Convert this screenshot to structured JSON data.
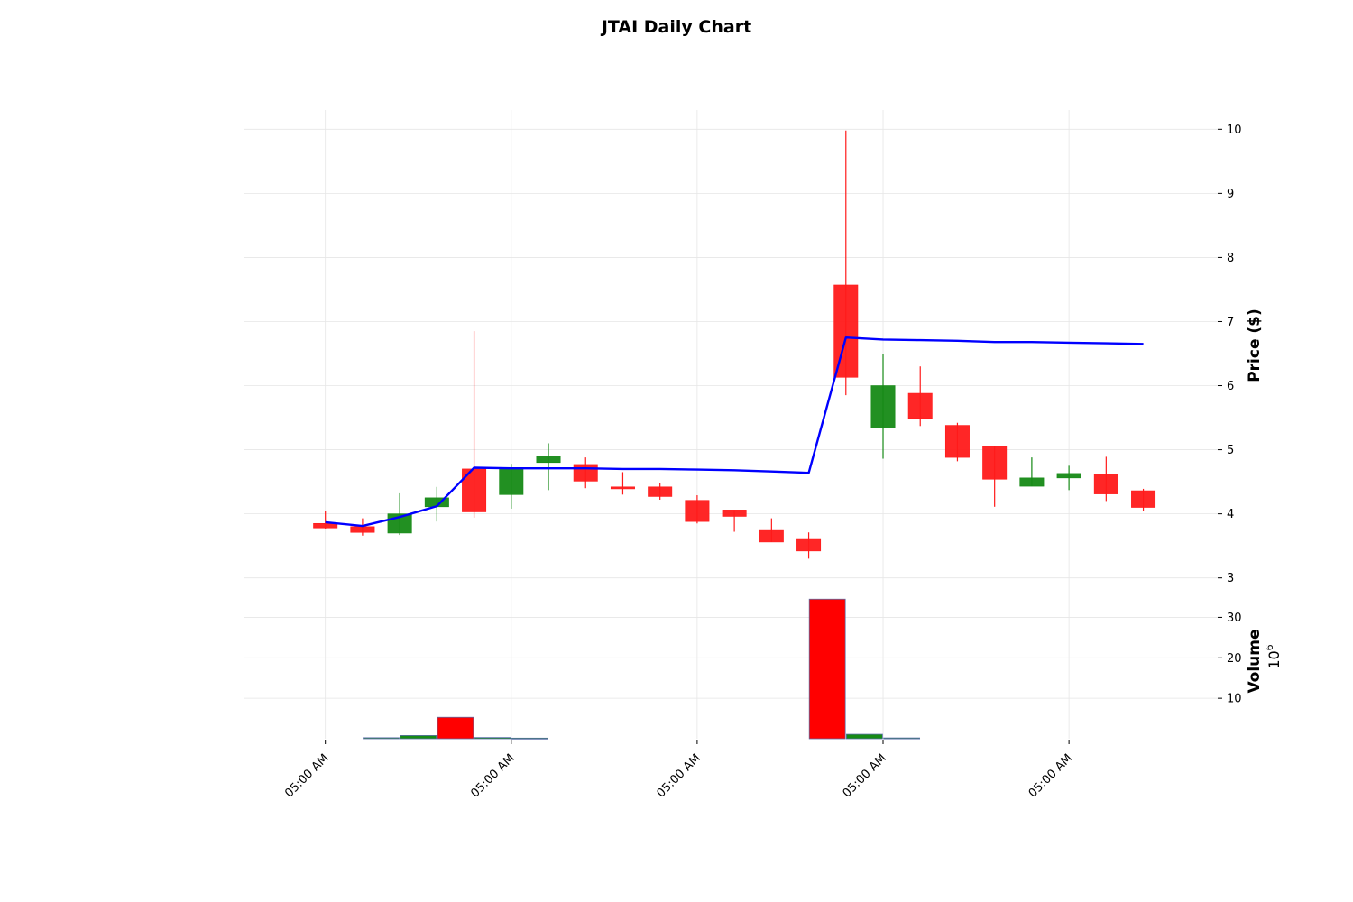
{
  "chart_data": {
    "type": "candlestick",
    "title": "JTAI Daily Chart",
    "price_axis": {
      "label": "Price ($)",
      "ylim": [
        2.7,
        10.3
      ],
      "ticks": [
        3,
        4,
        5,
        6,
        7,
        8,
        9,
        10
      ]
    },
    "volume_axis": {
      "label": "Volume",
      "exponent_label": "10",
      "exponent_power": "6",
      "ylim": [
        0,
        35
      ],
      "ticks": [
        10,
        20,
        30
      ]
    },
    "x_axis": {
      "tick_labels": [
        "05:00 AM",
        "05:00 AM",
        "05:00 AM",
        "05:00 AM",
        "05:00 AM"
      ],
      "tick_positions": [
        0,
        5,
        10,
        15,
        20
      ],
      "xlim": [
        -2.2,
        24.0
      ]
    },
    "candles": [
      {
        "x": 0,
        "open": 3.85,
        "high": 4.05,
        "low": 3.77,
        "close": 3.78
      },
      {
        "x": 1,
        "open": 3.8,
        "high": 3.93,
        "low": 3.66,
        "close": 3.71
      },
      {
        "x": 2,
        "open": 3.7,
        "high": 4.32,
        "low": 3.67,
        "close": 4.0
      },
      {
        "x": 3,
        "open": 4.11,
        "high": 4.42,
        "low": 3.88,
        "close": 4.25
      },
      {
        "x": 4,
        "open": 4.7,
        "high": 6.85,
        "low": 3.94,
        "close": 4.03
      },
      {
        "x": 5,
        "open": 4.3,
        "high": 4.78,
        "low": 4.08,
        "close": 4.7
      },
      {
        "x": 6,
        "open": 4.8,
        "high": 5.1,
        "low": 4.37,
        "close": 4.9
      },
      {
        "x": 7,
        "open": 4.77,
        "high": 4.88,
        "low": 4.4,
        "close": 4.51
      },
      {
        "x": 8,
        "open": 4.42,
        "high": 4.65,
        "low": 4.3,
        "close": 4.39
      },
      {
        "x": 9,
        "open": 4.42,
        "high": 4.48,
        "low": 4.22,
        "close": 4.27
      },
      {
        "x": 10,
        "open": 4.21,
        "high": 4.29,
        "low": 3.85,
        "close": 3.88
      },
      {
        "x": 11,
        "open": 4.06,
        "high": 4.06,
        "low": 3.72,
        "close": 3.96
      },
      {
        "x": 12,
        "open": 3.74,
        "high": 3.93,
        "low": 3.56,
        "close": 3.56
      },
      {
        "x": 13,
        "open": 3.6,
        "high": 3.71,
        "low": 3.3,
        "close": 3.42
      },
      {
        "x": 14,
        "open": 7.57,
        "high": 9.98,
        "low": 5.85,
        "close": 6.13
      },
      {
        "x": 15,
        "open": 5.34,
        "high": 6.5,
        "low": 4.86,
        "close": 6.0
      },
      {
        "x": 16,
        "open": 5.88,
        "high": 6.3,
        "low": 5.37,
        "close": 5.49
      },
      {
        "x": 17,
        "open": 5.38,
        "high": 5.42,
        "low": 4.82,
        "close": 4.88
      },
      {
        "x": 18,
        "open": 5.05,
        "high": 5.05,
        "low": 4.11,
        "close": 4.54
      },
      {
        "x": 19,
        "open": 4.43,
        "high": 4.88,
        "low": 4.43,
        "close": 4.56
      },
      {
        "x": 20,
        "open": 4.56,
        "high": 4.75,
        "low": 4.37,
        "close": 4.63
      },
      {
        "x": 21,
        "open": 4.62,
        "high": 4.89,
        "low": 4.2,
        "close": 4.31
      },
      {
        "x": 22,
        "open": 4.36,
        "high": 4.39,
        "low": 4.04,
        "close": 4.1
      }
    ],
    "moving_average": {
      "color": "#0000ff",
      "points": [
        {
          "x": 0,
          "y": 3.87
        },
        {
          "x": 1,
          "y": 3.81
        },
        {
          "x": 2,
          "y": 3.95
        },
        {
          "x": 3,
          "y": 4.12
        },
        {
          "x": 4,
          "y": 4.72
        },
        {
          "x": 5,
          "y": 4.71
        },
        {
          "x": 6,
          "y": 4.71
        },
        {
          "x": 7,
          "y": 4.71
        },
        {
          "x": 8,
          "y": 4.7
        },
        {
          "x": 9,
          "y": 4.7
        },
        {
          "x": 10,
          "y": 4.69
        },
        {
          "x": 11,
          "y": 4.68
        },
        {
          "x": 12,
          "y": 4.66
        },
        {
          "x": 13,
          "y": 4.64
        },
        {
          "x": 14,
          "y": 6.75
        },
        {
          "x": 15,
          "y": 6.72
        },
        {
          "x": 16,
          "y": 6.71
        },
        {
          "x": 17,
          "y": 6.7
        },
        {
          "x": 18,
          "y": 6.68
        },
        {
          "x": 19,
          "y": 6.68
        },
        {
          "x": 20,
          "y": 6.67
        },
        {
          "x": 21,
          "y": 6.66
        },
        {
          "x": 22,
          "y": 6.65
        }
      ]
    },
    "volume_bars": [
      {
        "x": 1.5,
        "value": 0.25,
        "direction": "up"
      },
      {
        "x": 2.5,
        "value": 0.8,
        "direction": "up"
      },
      {
        "x": 3.5,
        "value": 5.3,
        "direction": "down"
      },
      {
        "x": 4.5,
        "value": 0.3,
        "direction": "up"
      },
      {
        "x": 5.5,
        "value": 0.15,
        "direction": "up"
      },
      {
        "x": 13.5,
        "value": 34.5,
        "direction": "down"
      },
      {
        "x": 14.5,
        "value": 1.1,
        "direction": "up"
      },
      {
        "x": 15.5,
        "value": 0.2,
        "direction": "up"
      }
    ],
    "colors": {
      "up": "#168a16",
      "down": "#ff1a1a",
      "volume_down": "#ff0000",
      "volume_up": "#168a16",
      "volume_edge": "#5a6fa8",
      "grid": "#e6e6e6"
    },
    "grid": true
  }
}
